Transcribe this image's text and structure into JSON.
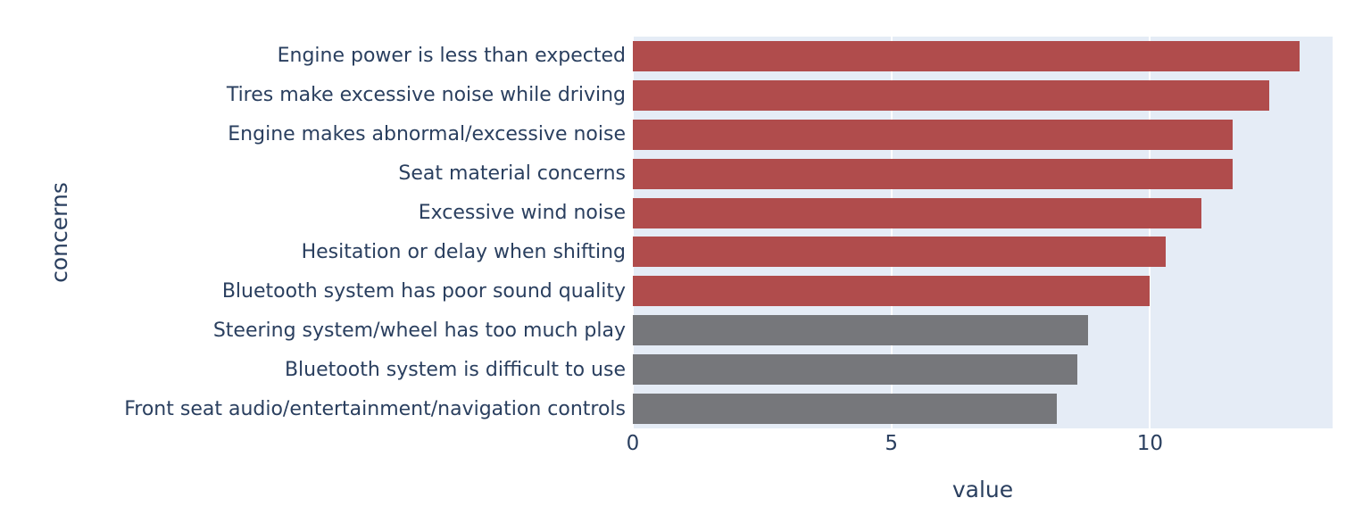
{
  "chart_data": {
    "type": "bar",
    "orientation": "horizontal",
    "title": "",
    "xlabel": "value",
    "ylabel": "concerns",
    "categories": [
      "Engine power is less than expected",
      "Tires make excessive noise while driving",
      "Engine makes abnormal/excessive noise",
      "Seat material concerns",
      "Excessive wind noise",
      "Hesitation or delay when shifting",
      "Bluetooth system has poor sound quality",
      "Steering system/wheel has too much play",
      "Bluetooth system is difficult to use",
      "Front seat audio/entertainment/navigation controls"
    ],
    "values": [
      12.9,
      12.3,
      11.6,
      11.6,
      11.0,
      10.3,
      10.0,
      8.8,
      8.6,
      8.2
    ],
    "bar_colors": [
      "#b04c4c",
      "#b04c4c",
      "#b04c4c",
      "#b04c4c",
      "#b04c4c",
      "#b04c4c",
      "#b04c4c",
      "#76777b",
      "#76777b",
      "#76777b"
    ],
    "colors": {
      "highlight_red": "#b04c4c",
      "muted_gray": "#76777b",
      "plot_background": "#e5ecf6",
      "gridline": "#ffffff",
      "text": "#2a3f5f",
      "page_background": "#ffffff"
    },
    "xlim": [
      0,
      13.53
    ],
    "xticks": [
      0,
      5,
      10
    ],
    "grid": true,
    "legend_position": "none"
  }
}
